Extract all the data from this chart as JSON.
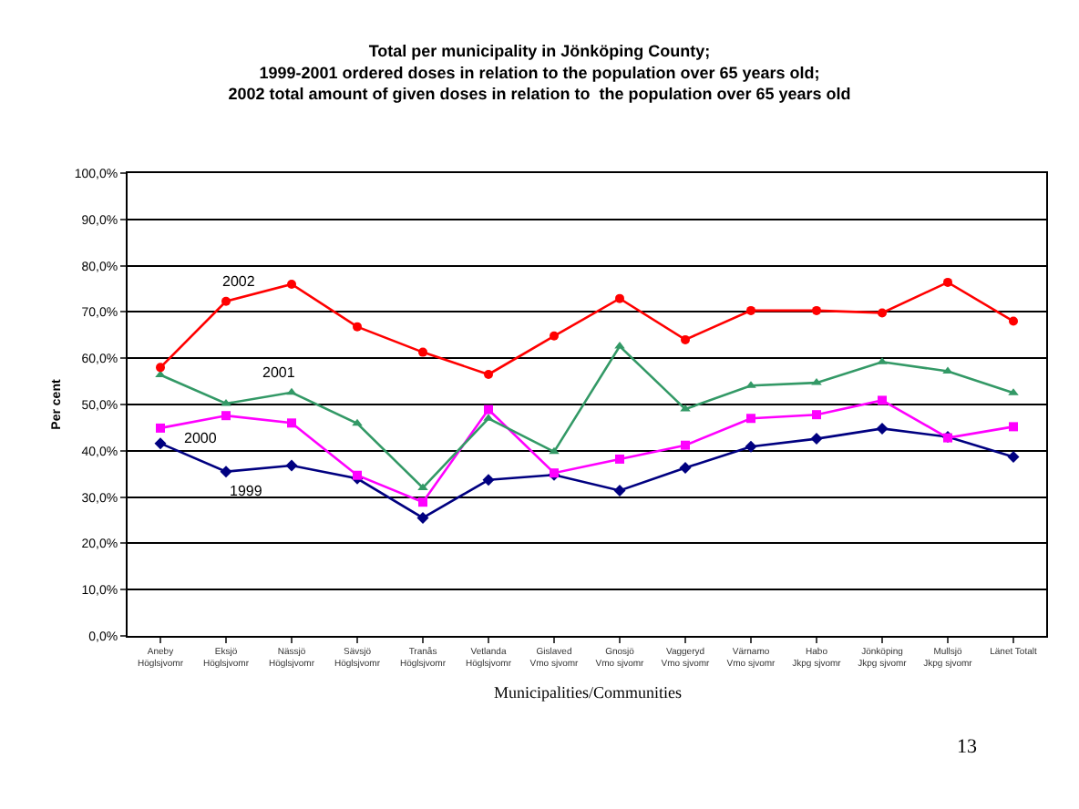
{
  "chart_data": {
    "type": "line",
    "title": "Total per municipality in Jönköping County;\n1999-2001 ordered doses in relation to the population over 65 years old;\n2002 total amount of given doses in relation to  the population over 65 years old",
    "xlabel": "Municipalities/Communities",
    "ylabel": "Per cent",
    "categories": [
      "Aneby\nHöglsjvomr",
      "Eksjö\nHöglsjvomr",
      "Nässjö\nHöglsjvomr",
      "Sävsjö\nHöglsjvomr",
      "Tranås\nHöglsjvomr",
      "Vetlanda\nHöglsjvomr",
      "Gislaved\nVmo sjvomr",
      "Gnosjö\nVmo sjvomr",
      "Vaggeryd\nVmo sjvomr",
      "Värnamo\nVmo sjvomr",
      "Habo\nJkpg sjvomr",
      "Jönköping\nJkpg sjvomr",
      "Mullsjö\nJkpg sjvomr",
      "Länet Totalt"
    ],
    "series": [
      {
        "name": "2002",
        "color": "#ff0000",
        "marker": "circle",
        "values": [
          58.0,
          72.3,
          76.0,
          66.8,
          61.3,
          56.5,
          64.8,
          72.9,
          64.0,
          70.3,
          70.3,
          69.8,
          76.4,
          68.0
        ]
      },
      {
        "name": "2001",
        "color": "#339966",
        "marker": "triangle",
        "values": [
          56.4,
          50.2,
          52.6,
          45.9,
          32.0,
          47.0,
          39.8,
          62.6,
          49.0,
          54.1,
          54.7,
          59.2,
          57.2,
          52.5
        ]
      },
      {
        "name": "2000",
        "color": "#ff00ff",
        "marker": "square",
        "values": [
          44.9,
          47.6,
          46.0,
          34.7,
          28.9,
          48.9,
          35.2,
          38.2,
          41.2,
          47.0,
          47.8,
          50.9,
          42.8,
          45.2
        ]
      },
      {
        "name": "1999",
        "color": "#000080",
        "marker": "diamond",
        "values": [
          41.6,
          35.5,
          36.8,
          34.0,
          25.5,
          33.7,
          34.8,
          31.4,
          36.3,
          40.9,
          42.6,
          44.8,
          43.0,
          38.7
        ]
      }
    ],
    "ylim": [
      0,
      100
    ],
    "yticks": [
      {
        "value": 0,
        "label": "0,0%"
      },
      {
        "value": 10,
        "label": "10,0%"
      },
      {
        "value": 20,
        "label": "20,0%"
      },
      {
        "value": 30,
        "label": "30,0%"
      },
      {
        "value": 40,
        "label": "40,0%"
      },
      {
        "value": 50,
        "label": "50,0%"
      },
      {
        "value": 60,
        "label": "60,0%"
      },
      {
        "value": 70,
        "label": "70,0%"
      },
      {
        "value": 80,
        "label": "80,0%"
      },
      {
        "value": 90,
        "label": "90,0%"
      },
      {
        "value": 100,
        "label": "100,0%"
      }
    ],
    "grid": "y",
    "legend": false,
    "line_style": "solid",
    "annotations": [
      "13"
    ]
  }
}
